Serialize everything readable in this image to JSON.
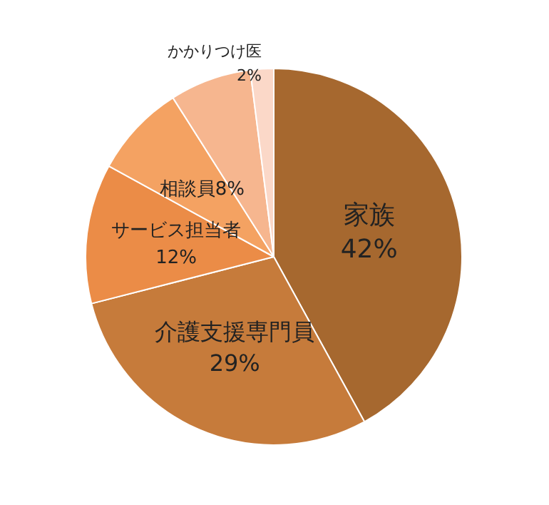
{
  "chart_data": {
    "type": "pie",
    "categories": [
      "家族",
      "介護支援専門員",
      "サービス担当者",
      "相談員",
      null,
      "かかりつけ医"
    ],
    "values": [
      42,
      29,
      12,
      8,
      7,
      2
    ],
    "value_labels": [
      "42%",
      "29%",
      "12%",
      "8%",
      null,
      "2%"
    ],
    "colors": [
      "#a6682f",
      "#c67b3b",
      "#eb8c47",
      "#f4a262",
      "#f6b68f",
      "#fbd8c8"
    ],
    "legend": false
  }
}
